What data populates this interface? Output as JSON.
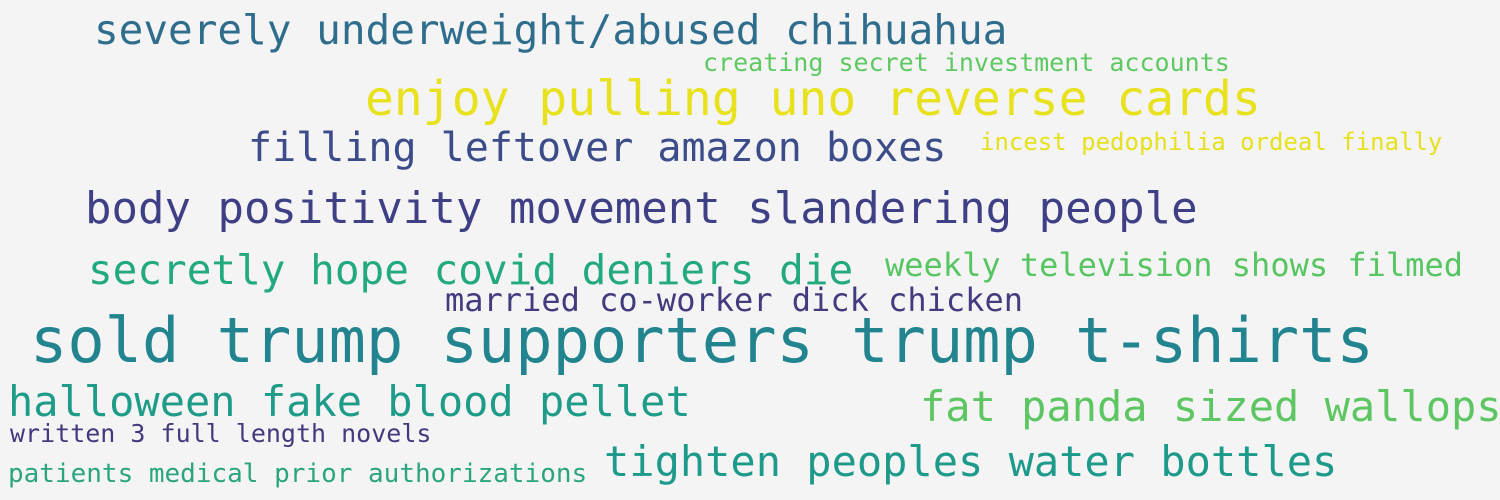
{
  "phrases": [
    {
      "text": "severely underweight/abused chihuahua",
      "color": "#2f6d8d"
    },
    {
      "text": "creating secret investment accounts",
      "color": "#5ec962"
    },
    {
      "text": "enjoy pulling uno reverse cards",
      "color": "#e8e11e"
    },
    {
      "text": "filling leftover amazon boxes",
      "color": "#3b4c89"
    },
    {
      "text": "incest pedophilia ordeal finally",
      "color": "#e6e01d"
    },
    {
      "text": "body positivity movement slandering people",
      "color": "#3e3f85"
    },
    {
      "text": "secretly hope covid deniers die",
      "color": "#23a97f"
    },
    {
      "text": "weekly television shows filmed",
      "color": "#56c562"
    },
    {
      "text": "married co-worker dick chicken",
      "color": "#423c7e"
    },
    {
      "text": "sold trump supporters trump t-shirts",
      "color": "#21848e"
    },
    {
      "text": "halloween fake blood pellet",
      "color": "#1f9c89"
    },
    {
      "text": "fat panda sized wallops",
      "color": "#5dc663"
    },
    {
      "text": "written 3 full length novels",
      "color": "#433a7d"
    },
    {
      "text": "patients medical prior authorizations",
      "color": "#2ba57f"
    },
    {
      "text": "tighten peoples water bottles",
      "color": "#1d9a8a"
    }
  ]
}
